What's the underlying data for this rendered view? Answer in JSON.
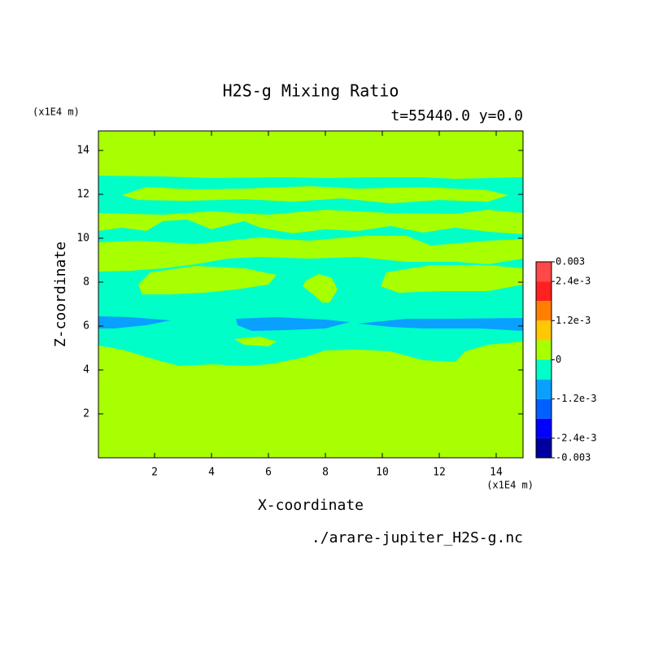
{
  "chart_data": {
    "type": "contour",
    "title": "H2S-g Mixing Ratio",
    "subtitle": "t=55440.0 y=0.0",
    "x_label": "X-coordinate",
    "y_label": "Z-coordinate",
    "x_unit": "(x1E4 m)",
    "y_unit": "(x1E4 m)",
    "source": "./arare-jupiter_H2S-g.nc",
    "xlim": [
      0,
      15
    ],
    "xticks": [
      2,
      4,
      6,
      8,
      10,
      12,
      14
    ],
    "ylim": [
      0,
      15
    ],
    "yticks": [
      2,
      4,
      6,
      8,
      10,
      12,
      14
    ],
    "levels": [
      -0.003,
      -0.0024,
      -0.0018,
      -0.0012,
      -0.0006,
      0,
      0.0006,
      0.0012,
      0.0018,
      0.0024,
      0.003
    ],
    "colors": [
      "#0000a0",
      "#0000ff",
      "#0060ff",
      "#0aa0ff",
      "#00ffc8",
      "#a8ff00",
      "#ffc800",
      "#ff8000",
      "#ff2020",
      "#ff4848"
    ],
    "colorbar_ticks": [
      {
        "value": 0.003,
        "label": "0.003"
      },
      {
        "value": 0.0024,
        "label": "2.4e-3"
      },
      {
        "value": 0.0012,
        "label": "1.2e-3"
      },
      0,
      {
        "value": -0.0012,
        "label": "-1.2e-3"
      },
      {
        "value": -0.0024,
        "label": "-2.4e-3"
      },
      {
        "value": -0.003,
        "label": "-0.003"
      }
    ]
  }
}
